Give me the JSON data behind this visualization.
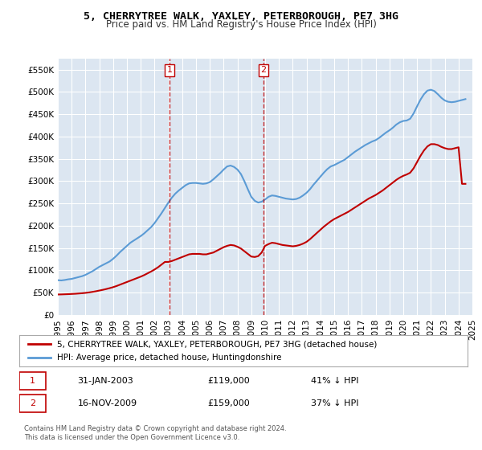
{
  "title": "5, CHERRYTREE WALK, YAXLEY, PETERBOROUGH, PE7 3HG",
  "subtitle": "Price paid vs. HM Land Registry's House Price Index (HPI)",
  "legend_line1": "5, CHERRYTREE WALK, YAXLEY, PETERBOROUGH, PE7 3HG (detached house)",
  "legend_line2": "HPI: Average price, detached house, Huntingdonshire",
  "sale1_label": "1",
  "sale1_date": "31-JAN-2003",
  "sale1_price": "£119,000",
  "sale1_hpi": "41% ↓ HPI",
  "sale2_label": "2",
  "sale2_date": "16-NOV-2009",
  "sale2_price": "£159,000",
  "sale2_hpi": "37% ↓ HPI",
  "footer": "Contains HM Land Registry data © Crown copyright and database right 2024.\nThis data is licensed under the Open Government Licence v3.0.",
  "ylim": [
    0,
    575000
  ],
  "yticks": [
    0,
    50000,
    100000,
    150000,
    200000,
    250000,
    300000,
    350000,
    400000,
    450000,
    500000,
    550000
  ],
  "ytick_labels": [
    "£0",
    "£50K",
    "£100K",
    "£150K",
    "£200K",
    "£250K",
    "£300K",
    "£350K",
    "£400K",
    "£450K",
    "£500K",
    "£550K"
  ],
  "hpi_color": "#5b9bd5",
  "property_color": "#c00000",
  "sale_marker_color": "#c00000",
  "background_color": "#dce6f1",
  "plot_bg_color": "#dce6f1",
  "hpi_x": [
    1995.0,
    1995.25,
    1995.5,
    1995.75,
    1996.0,
    1996.25,
    1996.5,
    1996.75,
    1997.0,
    1997.25,
    1997.5,
    1997.75,
    1998.0,
    1998.25,
    1998.5,
    1998.75,
    1999.0,
    1999.25,
    1999.5,
    1999.75,
    2000.0,
    2000.25,
    2000.5,
    2000.75,
    2001.0,
    2001.25,
    2001.5,
    2001.75,
    2002.0,
    2002.25,
    2002.5,
    2002.75,
    2003.0,
    2003.25,
    2003.5,
    2003.75,
    2004.0,
    2004.25,
    2004.5,
    2004.75,
    2005.0,
    2005.25,
    2005.5,
    2005.75,
    2006.0,
    2006.25,
    2006.5,
    2006.75,
    2007.0,
    2007.25,
    2007.5,
    2007.75,
    2008.0,
    2008.25,
    2008.5,
    2008.75,
    2009.0,
    2009.25,
    2009.5,
    2009.75,
    2010.0,
    2010.25,
    2010.5,
    2010.75,
    2011.0,
    2011.25,
    2011.5,
    2011.75,
    2012.0,
    2012.25,
    2012.5,
    2012.75,
    2013.0,
    2013.25,
    2013.5,
    2013.75,
    2014.0,
    2014.25,
    2014.5,
    2014.75,
    2015.0,
    2015.25,
    2015.5,
    2015.75,
    2016.0,
    2016.25,
    2016.5,
    2016.75,
    2017.0,
    2017.25,
    2017.5,
    2017.75,
    2018.0,
    2018.25,
    2018.5,
    2018.75,
    2019.0,
    2019.25,
    2019.5,
    2019.75,
    2020.0,
    2020.25,
    2020.5,
    2020.75,
    2021.0,
    2021.25,
    2021.5,
    2021.75,
    2022.0,
    2022.25,
    2022.5,
    2022.75,
    2023.0,
    2023.25,
    2023.5,
    2023.75,
    2024.0,
    2024.25,
    2024.5
  ],
  "hpi_y": [
    78000,
    77500,
    78500,
    80000,
    81000,
    83000,
    85000,
    87000,
    90000,
    94000,
    98000,
    103000,
    108000,
    112000,
    116000,
    120000,
    126000,
    133000,
    141000,
    148000,
    155000,
    162000,
    167000,
    172000,
    177000,
    183000,
    190000,
    197000,
    206000,
    217000,
    228000,
    240000,
    252000,
    263000,
    272000,
    279000,
    285000,
    291000,
    295000,
    296000,
    296000,
    295000,
    294000,
    295000,
    298000,
    304000,
    311000,
    318000,
    326000,
    333000,
    335000,
    332000,
    326000,
    316000,
    300000,
    282000,
    265000,
    256000,
    252000,
    254000,
    259000,
    265000,
    268000,
    267000,
    265000,
    263000,
    261000,
    260000,
    259000,
    260000,
    263000,
    268000,
    274000,
    282000,
    292000,
    301000,
    310000,
    319000,
    327000,
    333000,
    336000,
    340000,
    344000,
    348000,
    354000,
    360000,
    366000,
    371000,
    376000,
    381000,
    385000,
    389000,
    392000,
    397000,
    403000,
    409000,
    414000,
    420000,
    427000,
    432000,
    435000,
    436000,
    440000,
    452000,
    468000,
    483000,
    495000,
    503000,
    505000,
    502000,
    495000,
    487000,
    481000,
    478000,
    477000,
    478000,
    480000,
    482000,
    484000
  ],
  "prop_x": [
    1995.0,
    1995.25,
    1995.5,
    1995.75,
    1996.0,
    1996.25,
    1996.5,
    1996.75,
    1997.0,
    1997.25,
    1997.5,
    1997.75,
    1998.0,
    1998.25,
    1998.5,
    1998.75,
    1999.0,
    1999.25,
    1999.5,
    1999.75,
    2000.0,
    2000.25,
    2000.5,
    2000.75,
    2001.0,
    2001.25,
    2001.5,
    2001.75,
    2002.0,
    2002.25,
    2002.5,
    2002.75,
    2003.0,
    2003.25,
    2003.5,
    2003.75,
    2004.0,
    2004.25,
    2004.5,
    2004.75,
    2005.0,
    2005.25,
    2005.5,
    2005.75,
    2006.0,
    2006.25,
    2006.5,
    2006.75,
    2007.0,
    2007.25,
    2007.5,
    2007.75,
    2008.0,
    2008.25,
    2008.5,
    2008.75,
    2009.0,
    2009.25,
    2009.5,
    2009.75,
    2010.0,
    2010.25,
    2010.5,
    2010.75,
    2011.0,
    2011.25,
    2011.5,
    2011.75,
    2012.0,
    2012.25,
    2012.5,
    2012.75,
    2013.0,
    2013.25,
    2013.5,
    2013.75,
    2014.0,
    2014.25,
    2014.5,
    2014.75,
    2015.0,
    2015.25,
    2015.5,
    2015.75,
    2016.0,
    2016.25,
    2016.5,
    2016.75,
    2017.0,
    2017.25,
    2017.5,
    2017.75,
    2018.0,
    2018.25,
    2018.5,
    2018.75,
    2019.0,
    2019.25,
    2019.5,
    2019.75,
    2020.0,
    2020.25,
    2020.5,
    2020.75,
    2021.0,
    2021.25,
    2021.5,
    2021.75,
    2022.0,
    2022.25,
    2022.5,
    2022.75,
    2023.0,
    2023.25,
    2023.5,
    2023.75,
    2024.0,
    2024.25,
    2024.5
  ],
  "prop_y": [
    46000,
    46200,
    46500,
    46800,
    47200,
    47600,
    48200,
    48800,
    49600,
    50600,
    51800,
    53200,
    54800,
    56400,
    58200,
    60200,
    62400,
    65000,
    68000,
    71000,
    74000,
    77000,
    80000,
    83000,
    86000,
    89500,
    93500,
    97500,
    102000,
    107000,
    113000,
    119000,
    119000,
    121000,
    124000,
    127000,
    130000,
    133000,
    136000,
    137000,
    137000,
    137000,
    136000,
    136000,
    138000,
    140000,
    144000,
    148000,
    152000,
    155000,
    157000,
    156000,
    153000,
    149000,
    143000,
    137000,
    131000,
    130000,
    132000,
    140000,
    155000,
    159000,
    162000,
    161000,
    159000,
    157000,
    156000,
    155000,
    154000,
    155000,
    157000,
    160000,
    164000,
    170000,
    177000,
    184000,
    191000,
    198000,
    204000,
    210000,
    215000,
    219000,
    223000,
    227000,
    231000,
    236000,
    241000,
    246000,
    251000,
    256000,
    261000,
    265000,
    269000,
    274000,
    279000,
    285000,
    291000,
    297000,
    303000,
    308000,
    312000,
    315000,
    319000,
    329000,
    343000,
    357000,
    369000,
    378000,
    383000,
    383000,
    381000,
    377000,
    374000,
    372000,
    372000,
    374000,
    376000,
    294000,
    294000
  ],
  "sale1_x": 2003.08,
  "sale1_y": 119000,
  "sale2_x": 2009.88,
  "sale2_y": 159000,
  "xlim": [
    1995.0,
    2025.0
  ],
  "xtick_years": [
    1995,
    1996,
    1997,
    1998,
    1999,
    2000,
    2001,
    2002,
    2003,
    2004,
    2005,
    2006,
    2007,
    2008,
    2009,
    2010,
    2011,
    2012,
    2013,
    2014,
    2015,
    2016,
    2017,
    2018,
    2019,
    2020,
    2021,
    2022,
    2023,
    2024,
    2025
  ]
}
